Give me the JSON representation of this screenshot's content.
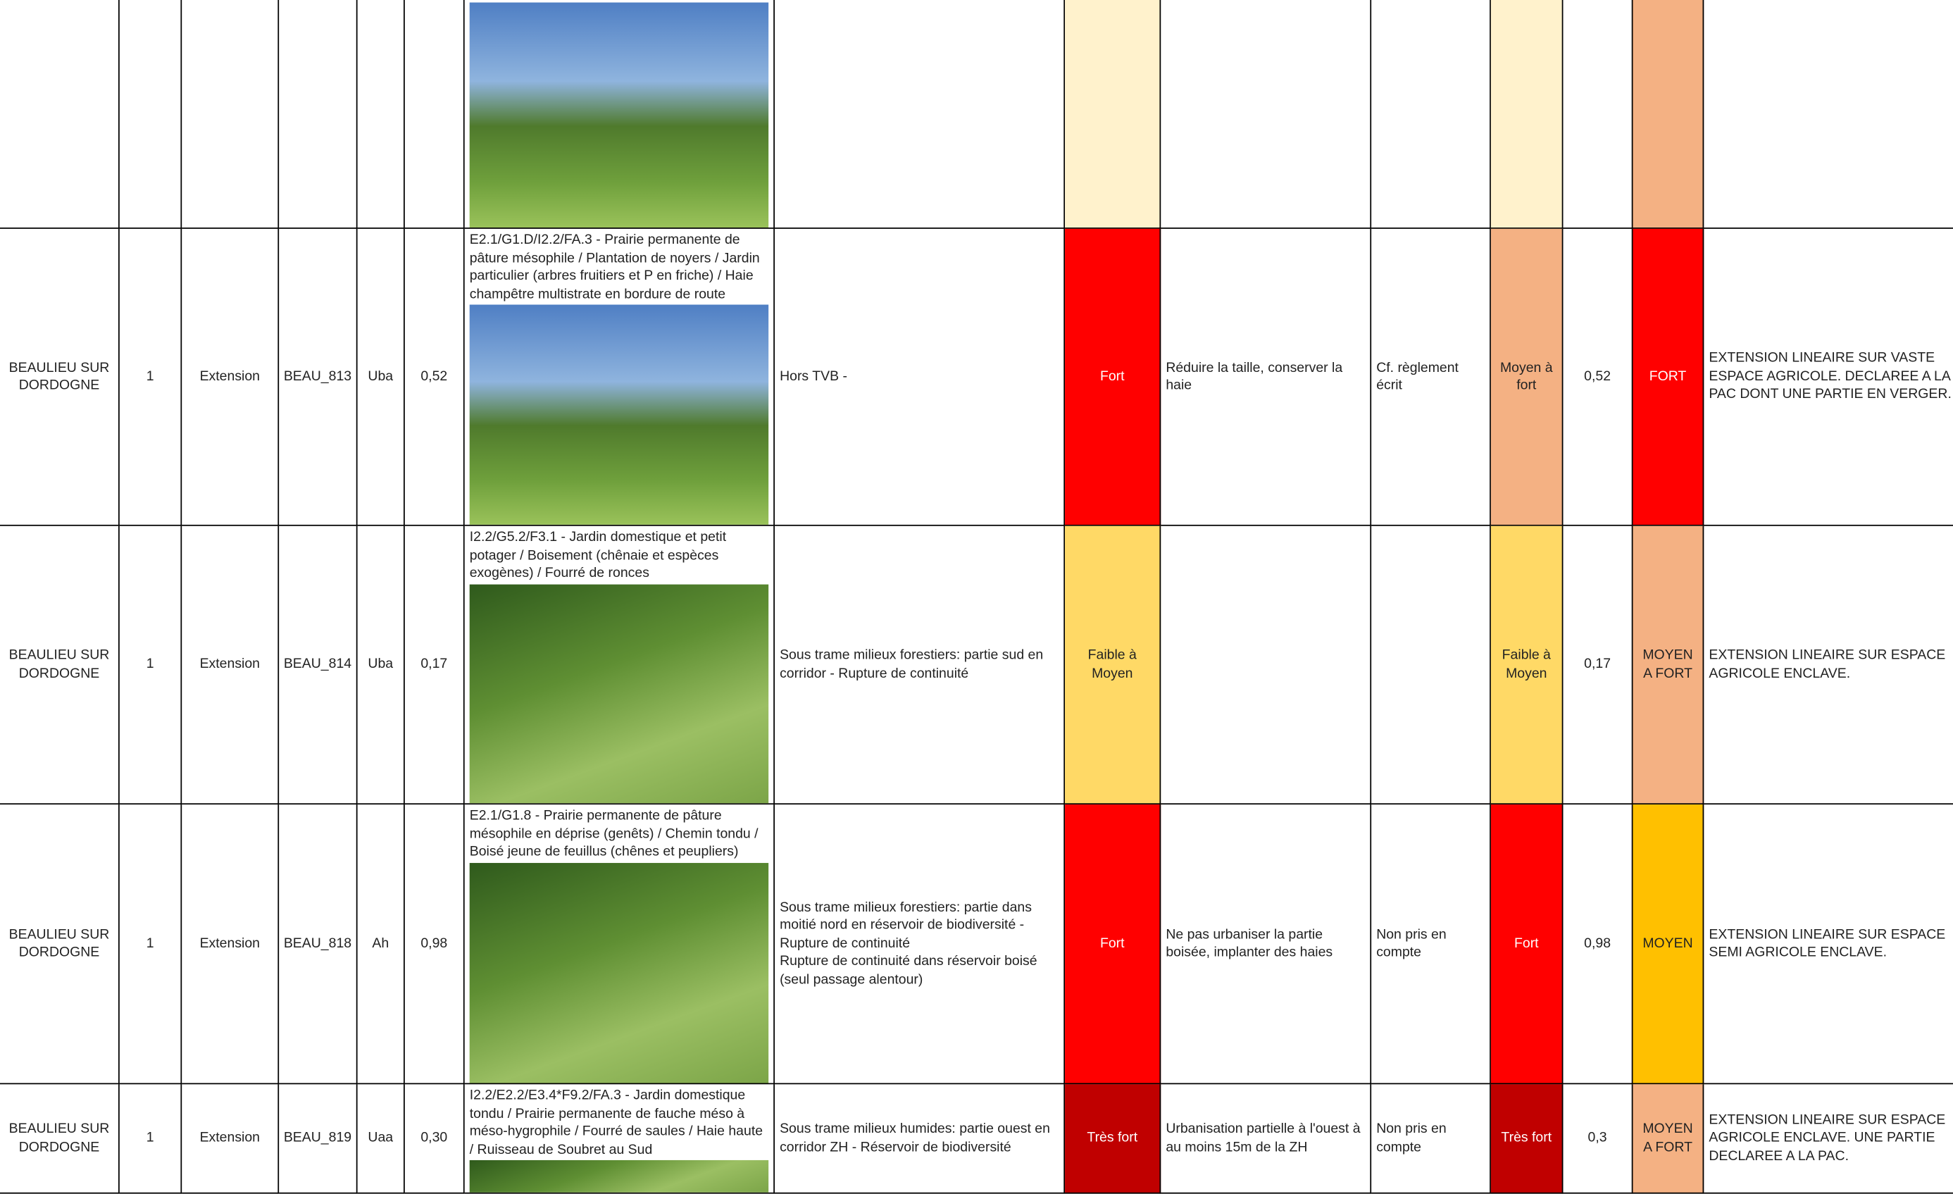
{
  "table": {
    "rows": [
      {
        "fills": {
          "enjeu": "#fff2cc",
          "impact": "#fff2cc",
          "niveau": "#f4b183"
        }
      },
      {
        "commune": "BEAULIEU SUR DORDOGNE",
        "n": "1",
        "type": "Extension",
        "id": "BEAU_813",
        "zone": "Uba",
        "surface": "0,52",
        "habitat": "E2.1/G1.D/I2.2/FA.3 - Prairie permanente de pâture mésophile / Plantation de noyers / Jardin particulier (arbres fruitiers et P en friche) / Haie champêtre multistrate en bordure de route",
        "tvb": "Hors TVB -",
        "enjeu": "Fort",
        "mesure": "Réduire la taille, conserver la haie",
        "reglement": "Cf. règlement écrit",
        "impact": "Moyen à fort",
        "surface2": "0,52",
        "niveau": "FORT",
        "commentaire": "EXTENSION LINEAIRE SUR VASTE ESPACE AGRICOLE. DECLAREE A LA PAC DONT UNE PARTIE EN VERGER.",
        "fills": {
          "enjeu": "#ff0000",
          "impact": "#f4b183",
          "niveau": "#ff0000"
        }
      },
      {
        "commune": "BEAULIEU SUR DORDOGNE",
        "n": "1",
        "type": "Extension",
        "id": "BEAU_814",
        "zone": "Uba",
        "surface": "0,17",
        "habitat": "I2.2/G5.2/F3.1 - Jardin domestique et petit potager / Boisement (chênaie et espèces exogènes) / Fourré de ronces",
        "tvb": "Sous trame milieux forestiers: partie sud en corridor - Rupture de continuité",
        "enjeu": "Faible à Moyen",
        "impact": "Faible à Moyen",
        "surface2": "0,17",
        "niveau": "MOYEN A FORT",
        "commentaire": "EXTENSION LINEAIRE SUR ESPACE AGRICOLE ENCLAVE.",
        "fills": {
          "enjeu": "#ffd966",
          "impact": "#ffd966",
          "niveau": "#f4b183"
        }
      },
      {
        "commune": "BEAULIEU SUR DORDOGNE",
        "n": "1",
        "type": "Extension",
        "id": "BEAU_818",
        "zone": "Ah",
        "surface": "0,98",
        "habitat": "E2.1/G1.8 - Prairie permanente de pâture mésophile en déprise (genêts) / Chemin tondu / Boisé jeune de feuillus (chênes et peupliers)",
        "tvb": "Sous trame milieux forestiers: partie dans moitié nord en réservoir de biodiversité - Rupture de continuité\nRupture de continuité dans réservoir boisé (seul passage alentour)",
        "enjeu": "Fort",
        "mesure": "Ne pas urbaniser la partie boisée, implanter des haies",
        "reglement": "Non pris en compte",
        "impact": "Fort",
        "surface2": "0,98",
        "niveau": "MOYEN",
        "commentaire": "EXTENSION LINEAIRE SUR ESPACE SEMI AGRICOLE ENCLAVE.",
        "fills": {
          "enjeu": "#ff0000",
          "impact": "#ff0000",
          "niveau": "#ffc000"
        }
      },
      {
        "commune": "BEAULIEU SUR DORDOGNE",
        "n": "1",
        "type": "Extension",
        "id": "BEAU_819",
        "zone": "Uaa",
        "surface": "0,30",
        "habitat": "I2.2/E2.2/E3.4*F9.2/FA.3 - Jardin domestique tondu / Prairie permanente de fauche méso à méso-hygrophile / Fourré de saules / Haie haute / Ruisseau de Soubret au Sud",
        "tvb": "Sous trame milieux humides: partie ouest en corridor ZH - Réservoir de biodiversité",
        "enjeu": "Très fort",
        "mesure": "Urbanisation partielle à l'ouest à au moins 15m de la ZH",
        "reglement": "Non pris en compte",
        "impact": "Très fort",
        "surface2": "0,3",
        "niveau": "MOYEN A FORT",
        "commentaire": "EXTENSION LINEAIRE SUR ESPACE AGRICOLE ENCLAVE. UNE PARTIE DECLAREE A LA PAC.",
        "fills": {
          "enjeu": "#c00000",
          "impact": "#c00000",
          "niveau": "#f4b183"
        }
      }
    ]
  }
}
